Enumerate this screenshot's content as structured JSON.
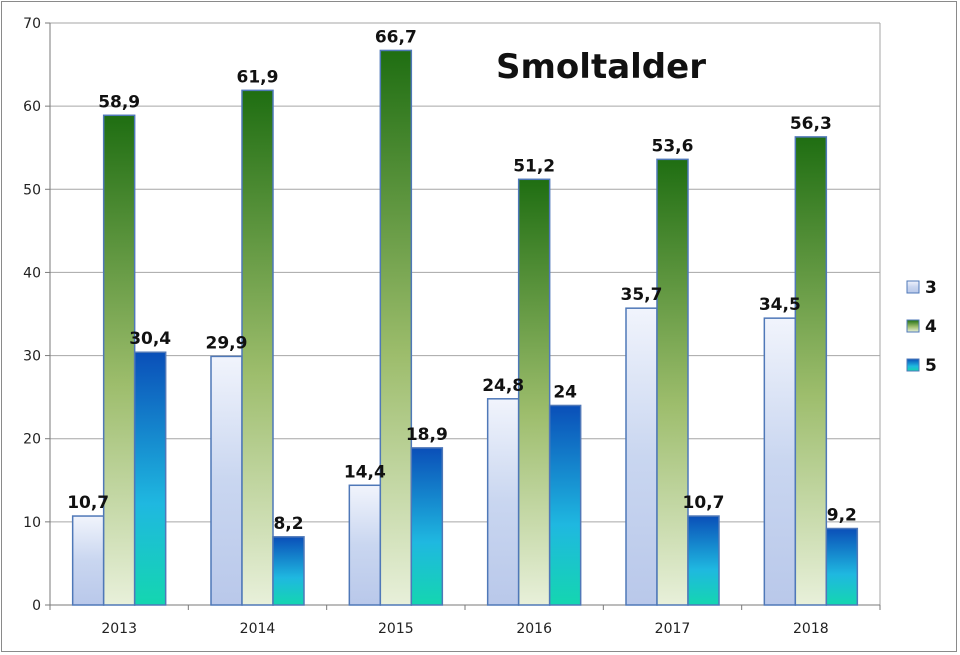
{
  "chart_data": {
    "type": "bar",
    "title": "Smoltalder",
    "xlabel": "",
    "ylabel": "",
    "categories": [
      "2013",
      "2014",
      "2015",
      "2016",
      "2017",
      "2018"
    ],
    "series": [
      {
        "name": "3",
        "values": [
          10.7,
          29.9,
          14.4,
          24.8,
          35.7,
          34.5
        ],
        "labels": [
          "10,7",
          "29,9",
          "14,4",
          "24,8",
          "35,7",
          "34,5"
        ]
      },
      {
        "name": "4",
        "values": [
          58.9,
          61.9,
          66.7,
          51.2,
          53.6,
          56.3
        ],
        "labels": [
          "58,9",
          "61,9",
          "66,7",
          "51,2",
          "53,6",
          "56,3"
        ]
      },
      {
        "name": "5",
        "values": [
          30.4,
          8.2,
          18.9,
          24,
          10.7,
          9.2
        ],
        "labels": [
          "30,4",
          "8,2",
          "18,9",
          "24",
          "10,7",
          "9,2"
        ]
      }
    ],
    "ylim": [
      0,
      70
    ],
    "yticks": [
      "0",
      "10",
      "20",
      "30",
      "40",
      "50",
      "60",
      "70"
    ],
    "grid": true,
    "legend_position": "right"
  }
}
